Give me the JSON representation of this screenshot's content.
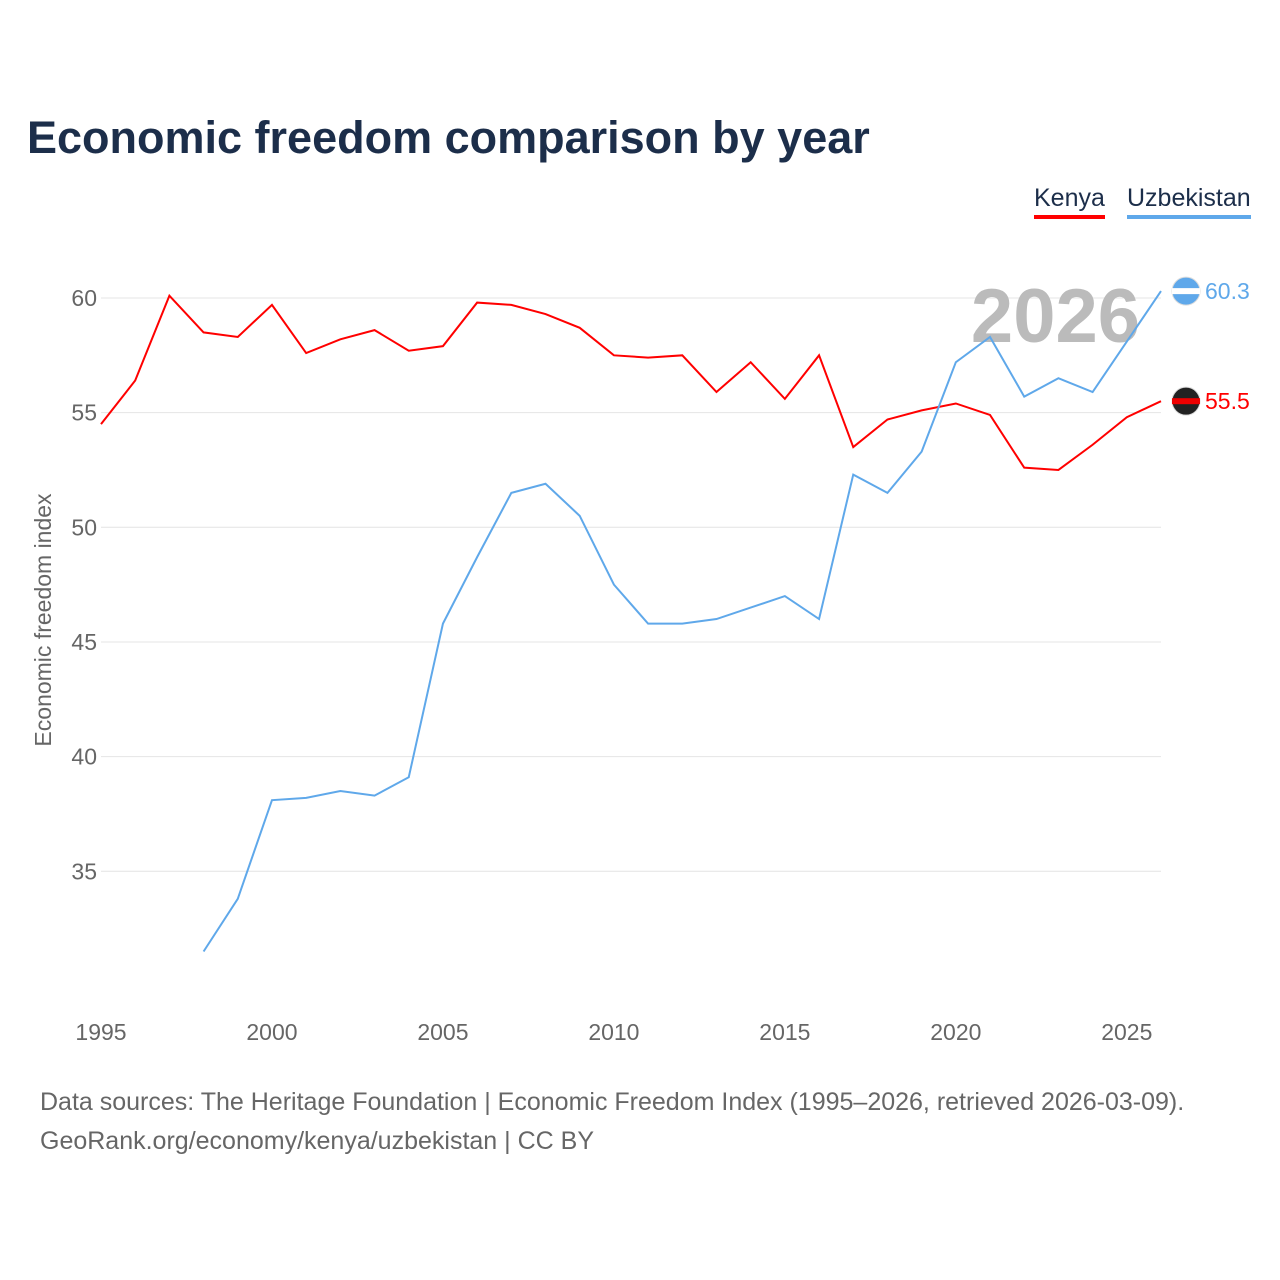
{
  "title": "Economic freedom comparison by year",
  "colors": {
    "kenya": "#ff0000",
    "uzbekistan": "#5fa8ea"
  },
  "footer": {
    "line1": "Data sources: The Heritage Foundation | Economic Freedom Index (1995–2026, retrieved 2026-03-09).",
    "line2": "GeoRank.org/economy/kenya/uzbekistan | CC BY"
  },
  "chart_data": {
    "type": "line",
    "title": "Economic freedom comparison by year",
    "xlabel": "",
    "ylabel": "Economic freedom index",
    "watermark_year": "2026",
    "xlim": [
      1995,
      2026
    ],
    "ylim": [
      31,
      61
    ],
    "xticks": [
      "1995",
      "2000",
      "2005",
      "2010",
      "2015",
      "2020",
      "2025"
    ],
    "yticks": [
      "35",
      "40",
      "45",
      "50",
      "55",
      "60"
    ],
    "legend": "top-right",
    "series": [
      {
        "name": "Kenya",
        "end_label": "55.5",
        "x": [
          1995,
          1996,
          1997,
          1998,
          1999,
          2000,
          2001,
          2002,
          2003,
          2004,
          2005,
          2006,
          2007,
          2008,
          2009,
          2010,
          2011,
          2012,
          2013,
          2014,
          2015,
          2016,
          2017,
          2018,
          2019,
          2020,
          2021,
          2022,
          2023,
          2024,
          2025,
          2026
        ],
        "values": [
          54.5,
          56.4,
          60.1,
          58.5,
          58.3,
          59.7,
          57.6,
          58.2,
          58.6,
          57.7,
          57.9,
          59.8,
          59.7,
          59.3,
          58.7,
          57.5,
          57.4,
          57.5,
          55.9,
          57.2,
          55.6,
          57.5,
          53.5,
          54.7,
          55.1,
          55.4,
          54.9,
          52.6,
          52.5,
          53.6,
          54.8,
          55.5
        ]
      },
      {
        "name": "Uzbekistan",
        "end_label": "60.3",
        "x": [
          1998,
          1999,
          2000,
          2001,
          2002,
          2003,
          2004,
          2005,
          2006,
          2007,
          2008,
          2009,
          2010,
          2011,
          2012,
          2013,
          2014,
          2015,
          2016,
          2017,
          2018,
          2019,
          2020,
          2021,
          2022,
          2023,
          2024,
          2025,
          2026
        ],
        "values": [
          31.5,
          33.8,
          38.1,
          38.2,
          38.5,
          38.3,
          39.1,
          45.8,
          48.7,
          51.5,
          51.9,
          50.5,
          47.5,
          45.8,
          45.8,
          46.0,
          46.5,
          47.0,
          46.0,
          52.3,
          51.5,
          53.3,
          57.2,
          58.3,
          55.7,
          56.5,
          55.9,
          58.1,
          60.3
        ]
      }
    ]
  }
}
